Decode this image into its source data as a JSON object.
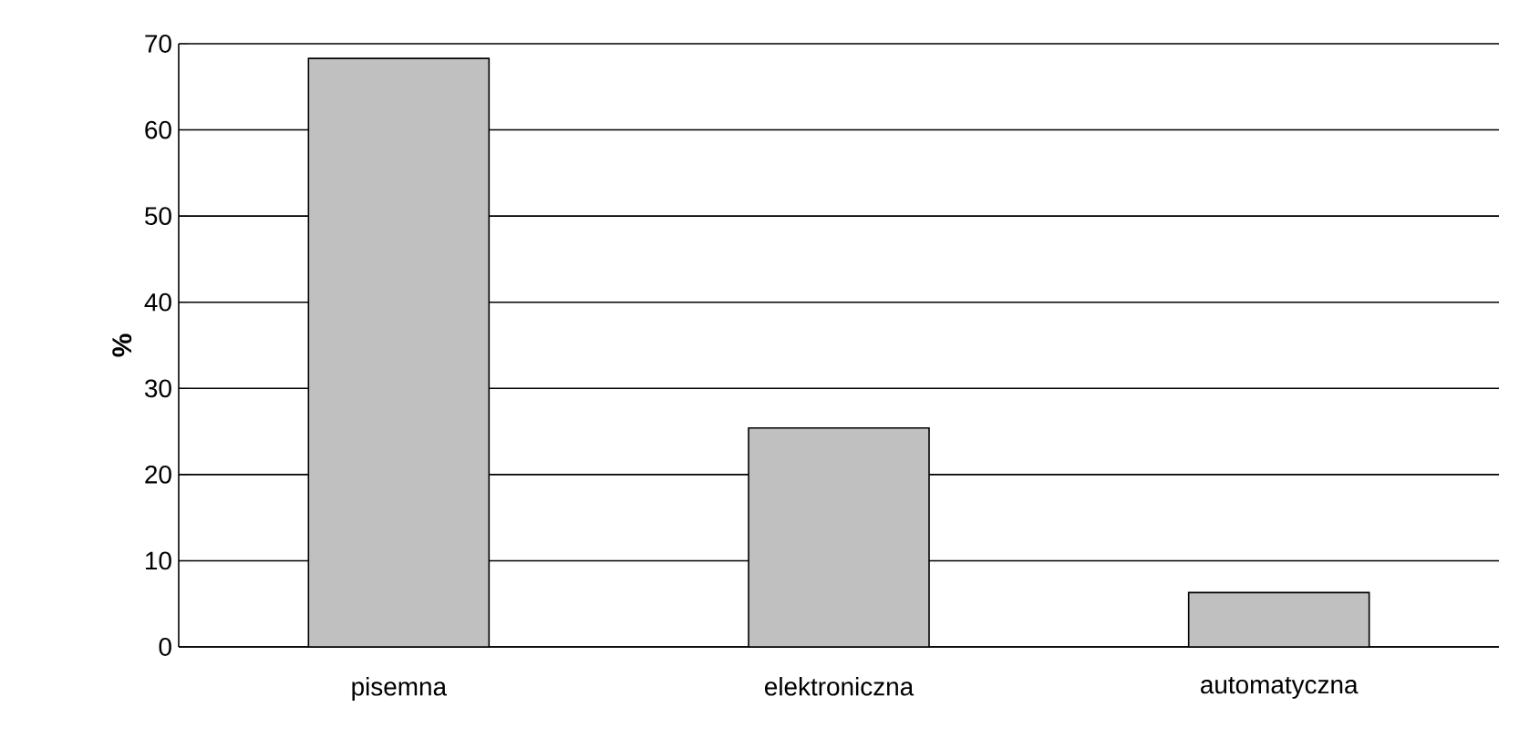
{
  "chart_data": {
    "type": "bar",
    "ylabel": "%",
    "categories": [
      "pisemna",
      "elektroniczna",
      "automatyczna"
    ],
    "values": [
      68.3,
      25.4,
      6.3
    ],
    "color": "#c0c0c0",
    "ylim": [
      0,
      70
    ],
    "yticks": [
      0,
      10,
      20,
      30,
      40,
      50,
      60,
      70
    ],
    "grid": "y"
  }
}
